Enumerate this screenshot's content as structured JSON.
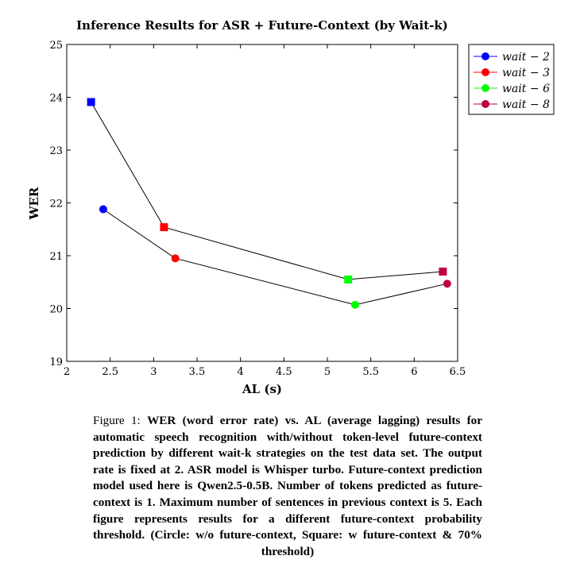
{
  "chart_data": {
    "type": "scatter",
    "title": "Inference Results for ASR + Future-Context (by Wait-k)",
    "xlabel": "AL (s)",
    "ylabel": "WER",
    "xlim": [
      2,
      6.5
    ],
    "ylim": [
      19,
      25
    ],
    "xticks": [
      "2",
      "2.5",
      "3",
      "3.5",
      "4",
      "4.5",
      "5",
      "5.5",
      "6",
      "6.5"
    ],
    "yticks": [
      "19",
      "20",
      "21",
      "22",
      "23",
      "24",
      "25"
    ],
    "grid": false,
    "legend_position": "outside-top-right",
    "legend": [
      {
        "label": "wait − 2",
        "color": "#0000ff"
      },
      {
        "label": "wait − 3",
        "color": "#ff0000"
      },
      {
        "label": "wait − 6",
        "color": "#00ff00"
      },
      {
        "label": "wait − 8",
        "color": "#bf0040"
      }
    ],
    "series": [
      {
        "marker": "circle",
        "points": [
          {
            "x": 2.42,
            "y": 21.88,
            "color": "#0000ff"
          },
          {
            "x": 3.25,
            "y": 20.95,
            "color": "#ff0000"
          },
          {
            "x": 5.32,
            "y": 20.07,
            "color": "#00ff00"
          },
          {
            "x": 6.38,
            "y": 20.47,
            "color": "#bf0040"
          }
        ]
      },
      {
        "marker": "square",
        "points": [
          {
            "x": 2.28,
            "y": 23.91,
            "color": "#0000ff"
          },
          {
            "x": 3.12,
            "y": 21.54,
            "color": "#ff0000"
          },
          {
            "x": 5.24,
            "y": 20.55,
            "color": "#00ff00"
          },
          {
            "x": 6.33,
            "y": 20.7,
            "color": "#bf0040"
          }
        ]
      }
    ]
  },
  "caption": {
    "label": "Figure 1:",
    "text": "WER (word error rate) vs. AL (average lagging) results for automatic speech recognition with/without token-level future-context prediction by different wait-k strategies on the test data set. The output rate is fixed at 2. ASR model is Whisper turbo. Future-context prediction model used here is Qwen2.5-0.5B. Number of tokens predicted as future-context is 1. Maximum number of sentences in previous context is 5. Each figure represents results for a different future-context probability threshold. (Circle: w/o future-context, Square: w future-context & 70% threshold)"
  }
}
